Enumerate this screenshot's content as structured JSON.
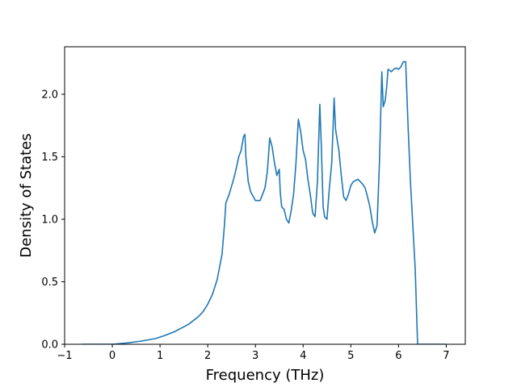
{
  "chart_data": {
    "type": "line",
    "title": "",
    "xlabel": "Frequency (THz)",
    "ylabel": "Density of States",
    "xlim": [
      -1.0,
      7.4
    ],
    "ylim": [
      0.0,
      2.38
    ],
    "xticks": [
      -1,
      0,
      1,
      2,
      3,
      4,
      5,
      6,
      7
    ],
    "yticks": [
      0.0,
      0.5,
      1.0,
      1.5,
      2.0
    ],
    "xtick_labels": [
      "−1",
      "0",
      "1",
      "2",
      "3",
      "4",
      "5",
      "6",
      "7"
    ],
    "ytick_labels": [
      "0.0",
      "0.5",
      "1.0",
      "1.5",
      "2.0"
    ],
    "grid": false,
    "legend": "none",
    "color": "#1f77b4",
    "series": [
      {
        "x": [
          -0.65,
          0.0,
          0.3,
          0.6,
          0.9,
          1.1,
          1.3,
          1.5,
          1.6,
          1.8,
          1.9,
          2.0,
          2.1,
          2.2,
          2.3,
          2.35,
          2.38,
          2.45,
          2.55,
          2.6,
          2.65,
          2.7,
          2.75,
          2.78,
          2.8,
          2.85,
          2.9,
          3.0,
          3.1,
          3.2,
          3.25,
          3.3,
          3.35,
          3.4,
          3.45,
          3.5,
          3.52,
          3.55,
          3.6,
          3.65,
          3.7,
          3.75,
          3.8,
          3.85,
          3.9,
          3.95,
          4.0,
          4.05,
          4.1,
          4.15,
          4.2,
          4.25,
          4.3,
          4.35,
          4.38,
          4.42,
          4.45,
          4.5,
          4.55,
          4.6,
          4.65,
          4.68,
          4.72,
          4.75,
          4.8,
          4.85,
          4.9,
          4.95,
          5.0,
          5.05,
          5.1,
          5.15,
          5.2,
          5.25,
          5.3,
          5.35,
          5.4,
          5.45,
          5.5,
          5.55,
          5.6,
          5.65,
          5.68,
          5.72,
          5.75,
          5.78,
          5.82,
          5.85,
          5.9,
          5.95,
          6.0,
          6.05,
          6.1,
          6.15,
          6.2,
          6.25,
          6.3,
          6.35,
          6.4,
          7.0
        ],
        "y": [
          0.0,
          0.0,
          0.01,
          0.025,
          0.045,
          0.07,
          0.1,
          0.14,
          0.16,
          0.22,
          0.26,
          0.32,
          0.4,
          0.52,
          0.72,
          0.95,
          1.13,
          1.2,
          1.33,
          1.41,
          1.5,
          1.55,
          1.66,
          1.68,
          1.5,
          1.3,
          1.22,
          1.15,
          1.15,
          1.25,
          1.38,
          1.65,
          1.58,
          1.45,
          1.35,
          1.4,
          1.22,
          1.1,
          1.08,
          1.0,
          0.97,
          1.07,
          1.2,
          1.45,
          1.8,
          1.7,
          1.55,
          1.48,
          1.32,
          1.2,
          1.05,
          1.02,
          1.3,
          1.92,
          1.6,
          1.1,
          1.02,
          1.0,
          1.25,
          1.45,
          1.97,
          1.72,
          1.62,
          1.55,
          1.35,
          1.18,
          1.15,
          1.2,
          1.27,
          1.3,
          1.31,
          1.32,
          1.3,
          1.28,
          1.25,
          1.18,
          1.1,
          0.98,
          0.89,
          0.95,
          1.45,
          2.18,
          1.9,
          1.95,
          2.05,
          2.2,
          2.19,
          2.18,
          2.2,
          2.21,
          2.2,
          2.22,
          2.26,
          2.26,
          1.75,
          1.3,
          0.95,
          0.6,
          0.0,
          0.0
        ]
      }
    ]
  }
}
